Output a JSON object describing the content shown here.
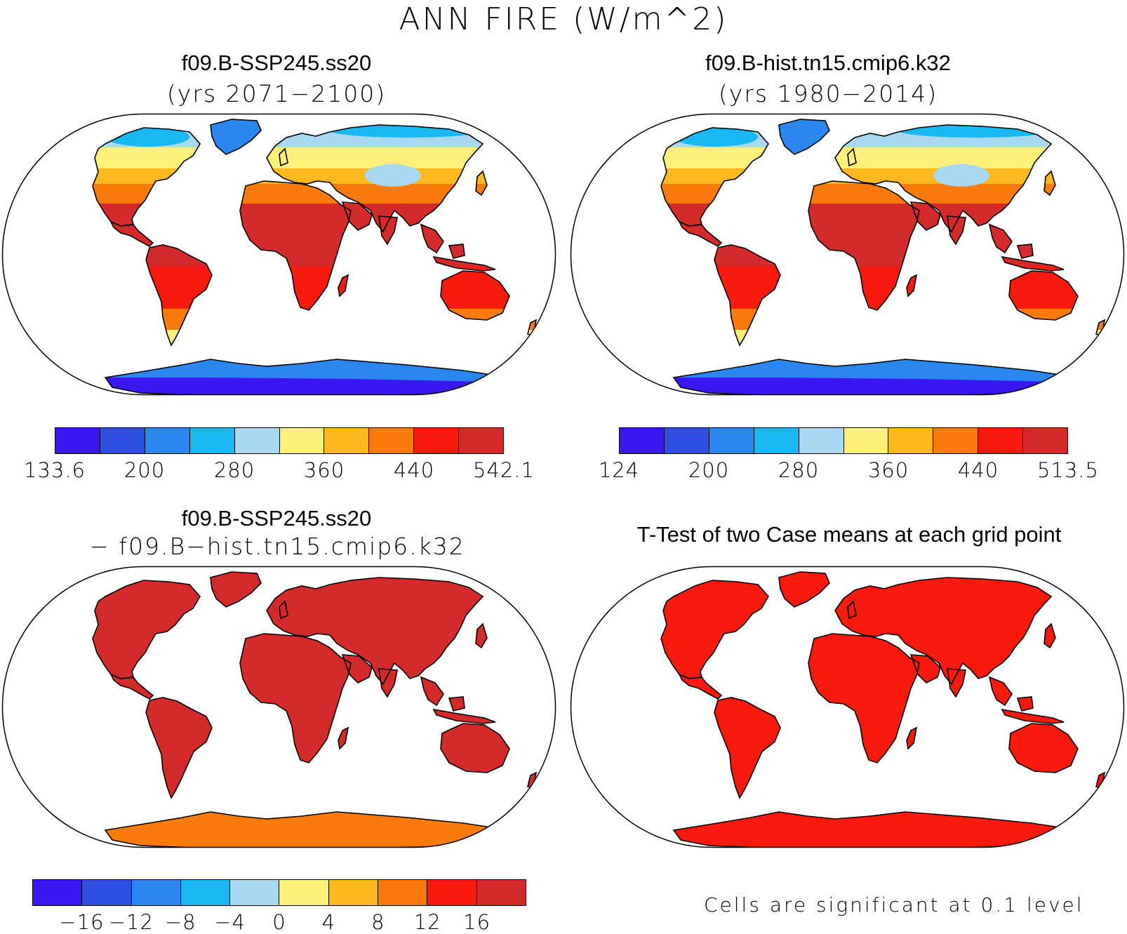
{
  "title": "ANN FIRE (W/m^2)",
  "colors": [
    "#3a16f0",
    "#2f4fe0",
    "#2a87f0",
    "#18b8f4",
    "#a8d8f2",
    "#fef07a",
    "#fdb81e",
    "#fb7a0c",
    "#f81a0c",
    "#d42a2a"
  ],
  "panels": [
    {
      "title": "f09.B-SSP245.ss20",
      "subtitle": "(yrs 2071−2100)",
      "ticks": [
        "133.6",
        "200",
        "280",
        "360",
        "440",
        "542.1"
      ],
      "fill": "mixed",
      "antarctic": "cold"
    },
    {
      "title": "f09.B-hist.tn15.cmip6.k32",
      "subtitle": "(yrs 1980−2014)",
      "ticks": [
        "124",
        "200",
        "280",
        "360",
        "440",
        "513.5"
      ],
      "fill": "mixed",
      "antarctic": "cold"
    },
    {
      "title": "f09.B-SSP245.ss20",
      "subtitle": "− f09.B−hist.tn15.cmip6.k32",
      "ticks": [
        "−16",
        "−12",
        "−8",
        "−4",
        "0",
        "4",
        "8",
        "12",
        "16"
      ],
      "fill": "#d42a2a",
      "antarctic": "#fb7a0c"
    },
    {
      "title": "T-Test of two Case means at each grid point",
      "note": "Cells are significant at 0.1 level",
      "fill": "#f81a0c",
      "antarctic": "#f81a0c"
    }
  ]
}
